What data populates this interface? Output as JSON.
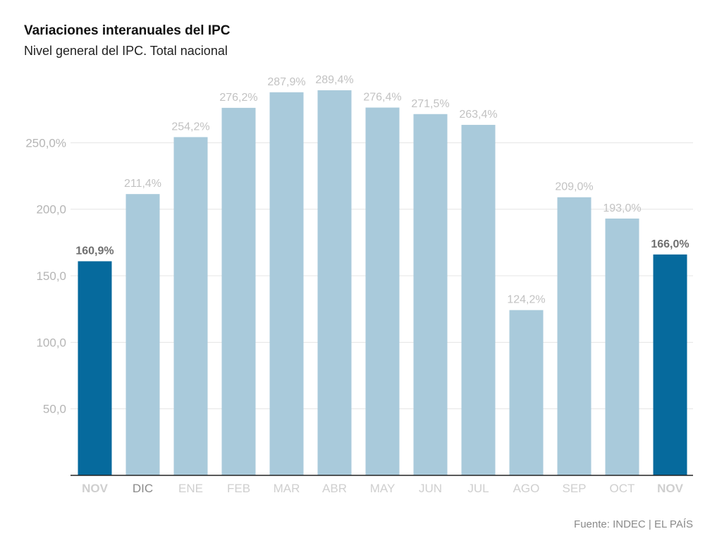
{
  "title": "Variaciones interanuales del IPC",
  "subtitle": "Nivel general del IPC. Total nacional",
  "source": "Fuente: INDEC | EL PAÍS",
  "chart_data": {
    "type": "bar",
    "title": "Variaciones interanuales del IPC",
    "subtitle": "Nivel general del IPC. Total nacional",
    "categories": [
      "NOV",
      "DIC",
      "ENE",
      "FEB",
      "MAR",
      "ABR",
      "MAY",
      "JUN",
      "JUL",
      "AGO",
      "SEP",
      "OCT",
      "NOV"
    ],
    "values": [
      160.9,
      211.4,
      254.2,
      276.2,
      287.9,
      289.4,
      276.4,
      271.5,
      263.4,
      124.2,
      209.0,
      193.0,
      166.0
    ],
    "value_labels": [
      "160,9%",
      "211,4%",
      "254,2%",
      "276,2%",
      "287,9%",
      "289,4%",
      "276,4%",
      "271,5%",
      "263,4%",
      "124,2%",
      "209,0%",
      "193,0%",
      "166,0%"
    ],
    "highlighted": [
      true,
      false,
      false,
      false,
      false,
      false,
      false,
      false,
      false,
      false,
      false,
      false,
      true
    ],
    "yticks": [
      50,
      100,
      150,
      200,
      250
    ],
    "ytick_labels": [
      "50,0",
      "100,0",
      "150,0",
      "200,0",
      "250,0%"
    ],
    "ylim": [
      0,
      300
    ],
    "grid": true,
    "xlabel": "",
    "ylabel": "",
    "colors": {
      "bar": "#a9cadb",
      "highlight": "#066a9d",
      "value_label": "#c2c2c2",
      "highlight_label": "#6f6f6f",
      "grid": "#e5e5e5",
      "axis": "#222222",
      "tick_label": "#b5b5b5",
      "xtick_label": "#cfcfcf",
      "xtick_highlight": "#cfcfcf",
      "xtick_dic": "#8a8a8a"
    }
  }
}
